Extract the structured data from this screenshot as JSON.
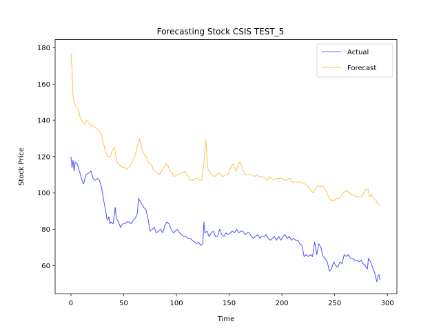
{
  "chart_data": {
    "type": "line",
    "title": "Forecasting Stock CSIS TEST_5",
    "xlabel": "Time",
    "ylabel": "Stock Price",
    "xlim": [
      -15,
      309
    ],
    "ylim": [
      44.5,
      184.5
    ],
    "xticks": [
      0,
      50,
      100,
      150,
      200,
      250,
      300
    ],
    "yticks": [
      60,
      80,
      100,
      120,
      140,
      160,
      180
    ],
    "grid": false,
    "legend_position": "top-right",
    "series": [
      {
        "name": "Actual",
        "color": "#0000ff",
        "points": [
          [
            0,
            120
          ],
          [
            1,
            114
          ],
          [
            2,
            118
          ],
          [
            3,
            112
          ],
          [
            4,
            117
          ],
          [
            6,
            116
          ],
          [
            8,
            112
          ],
          [
            9,
            110
          ],
          [
            11,
            106
          ],
          [
            12,
            105
          ],
          [
            14,
            110
          ],
          [
            17,
            111
          ],
          [
            19,
            112
          ],
          [
            21,
            108
          ],
          [
            23,
            107
          ],
          [
            25,
            108
          ],
          [
            27,
            107
          ],
          [
            29,
            103
          ],
          [
            31,
            96
          ],
          [
            33,
            90
          ],
          [
            34,
            86
          ],
          [
            35,
            85
          ],
          [
            36,
            87
          ],
          [
            37,
            83
          ],
          [
            38,
            84
          ],
          [
            40,
            83
          ],
          [
            42,
            92
          ],
          [
            43,
            86
          ],
          [
            45,
            84
          ],
          [
            47,
            81
          ],
          [
            49,
            83
          ],
          [
            51,
            83
          ],
          [
            53,
            84
          ],
          [
            55,
            84
          ],
          [
            57,
            83
          ],
          [
            59,
            85
          ],
          [
            61,
            86
          ],
          [
            63,
            89
          ],
          [
            64,
            97
          ],
          [
            65,
            96
          ],
          [
            67,
            94
          ],
          [
            69,
            92
          ],
          [
            71,
            91
          ],
          [
            73,
            86
          ],
          [
            75,
            79
          ],
          [
            77,
            80
          ],
          [
            79,
            81
          ],
          [
            81,
            78
          ],
          [
            83,
            79
          ],
          [
            85,
            80
          ],
          [
            87,
            78
          ],
          [
            89,
            82
          ],
          [
            91,
            84
          ],
          [
            93,
            83
          ],
          [
            95,
            80
          ],
          [
            97,
            78
          ],
          [
            99,
            79
          ],
          [
            101,
            80
          ],
          [
            103,
            78
          ],
          [
            105,
            77
          ],
          [
            107,
            76
          ],
          [
            109,
            76
          ],
          [
            111,
            75
          ],
          [
            113,
            75
          ],
          [
            115,
            74
          ],
          [
            117,
            73
          ],
          [
            119,
            72
          ],
          [
            121,
            73
          ],
          [
            123,
            71
          ],
          [
            125,
            72
          ],
          [
            126,
            84
          ],
          [
            127,
            78
          ],
          [
            129,
            79
          ],
          [
            131,
            76
          ],
          [
            133,
            78
          ],
          [
            135,
            79
          ],
          [
            137,
            76
          ],
          [
            139,
            76
          ],
          [
            141,
            80
          ],
          [
            143,
            77
          ],
          [
            145,
            76
          ],
          [
            147,
            78
          ],
          [
            149,
            77
          ],
          [
            151,
            78
          ],
          [
            153,
            79
          ],
          [
            155,
            78
          ],
          [
            157,
            80
          ],
          [
            159,
            78
          ],
          [
            161,
            79
          ],
          [
            163,
            79
          ],
          [
            165,
            77
          ],
          [
            167,
            78
          ],
          [
            169,
            78
          ],
          [
            171,
            76
          ],
          [
            173,
            75
          ],
          [
            175,
            76
          ],
          [
            177,
            77
          ],
          [
            179,
            75
          ],
          [
            181,
            76
          ],
          [
            183,
            76
          ],
          [
            185,
            77
          ],
          [
            187,
            75
          ],
          [
            189,
            74
          ],
          [
            191,
            75
          ],
          [
            193,
            76
          ],
          [
            195,
            74
          ],
          [
            197,
            76
          ],
          [
            199,
            74
          ],
          [
            201,
            76
          ],
          [
            203,
            77
          ],
          [
            205,
            75
          ],
          [
            207,
            76
          ],
          [
            209,
            74
          ],
          [
            211,
            75
          ],
          [
            213,
            74
          ],
          [
            215,
            74
          ],
          [
            217,
            72
          ],
          [
            219,
            71
          ],
          [
            221,
            65
          ],
          [
            223,
            66
          ],
          [
            225,
            65
          ],
          [
            227,
            66
          ],
          [
            229,
            65
          ],
          [
            231,
            73
          ],
          [
            232,
            70
          ],
          [
            233,
            66
          ],
          [
            235,
            72
          ],
          [
            237,
            70
          ],
          [
            239,
            65
          ],
          [
            241,
            64
          ],
          [
            243,
            62
          ],
          [
            245,
            57
          ],
          [
            247,
            58
          ],
          [
            249,
            62
          ],
          [
            251,
            60
          ],
          [
            253,
            59
          ],
          [
            255,
            62
          ],
          [
            257,
            61
          ],
          [
            259,
            66
          ],
          [
            261,
            65
          ],
          [
            263,
            66
          ],
          [
            265,
            64
          ],
          [
            267,
            64
          ],
          [
            269,
            63
          ],
          [
            271,
            63
          ],
          [
            273,
            62
          ],
          [
            275,
            63
          ],
          [
            277,
            61
          ],
          [
            279,
            60
          ],
          [
            281,
            58
          ],
          [
            282,
            64
          ],
          [
            284,
            62
          ],
          [
            286,
            59
          ],
          [
            288,
            56
          ],
          [
            290,
            51
          ],
          [
            291,
            54
          ],
          [
            292,
            55
          ],
          [
            293,
            52
          ]
        ]
      },
      {
        "name": "Forecast",
        "color": "#ffa500",
        "points": [
          [
            0,
            177
          ],
          [
            1,
            168
          ],
          [
            2,
            153
          ],
          [
            3,
            150
          ],
          [
            5,
            147
          ],
          [
            7,
            146
          ],
          [
            9,
            141
          ],
          [
            11,
            139
          ],
          [
            13,
            138
          ],
          [
            15,
            140
          ],
          [
            17,
            139
          ],
          [
            19,
            137
          ],
          [
            21,
            137
          ],
          [
            23,
            136
          ],
          [
            25,
            135
          ],
          [
            27,
            134
          ],
          [
            29,
            132
          ],
          [
            31,
            127
          ],
          [
            33,
            122
          ],
          [
            35,
            120
          ],
          [
            37,
            120
          ],
          [
            38,
            121
          ],
          [
            39,
            123
          ],
          [
            41,
            125
          ],
          [
            42,
            123
          ],
          [
            43,
            118
          ],
          [
            45,
            116
          ],
          [
            47,
            115
          ],
          [
            49,
            114
          ],
          [
            51,
            114
          ],
          [
            53,
            113
          ],
          [
            55,
            114
          ],
          [
            57,
            116
          ],
          [
            59,
            118
          ],
          [
            61,
            121
          ],
          [
            63,
            126
          ],
          [
            65,
            130
          ],
          [
            66,
            127
          ],
          [
            68,
            123
          ],
          [
            70,
            121
          ],
          [
            72,
            119
          ],
          [
            74,
            116
          ],
          [
            76,
            116
          ],
          [
            78,
            113
          ],
          [
            80,
            112
          ],
          [
            82,
            111
          ],
          [
            84,
            110
          ],
          [
            86,
            112
          ],
          [
            88,
            114
          ],
          [
            90,
            116
          ],
          [
            92,
            115
          ],
          [
            94,
            112
          ],
          [
            96,
            111
          ],
          [
            98,
            109
          ],
          [
            100,
            110
          ],
          [
            102,
            110
          ],
          [
            104,
            111
          ],
          [
            106,
            111
          ],
          [
            108,
            112
          ],
          [
            110,
            110
          ],
          [
            112,
            108
          ],
          [
            114,
            107
          ],
          [
            116,
            107
          ],
          [
            118,
            108
          ],
          [
            120,
            108
          ],
          [
            122,
            107
          ],
          [
            124,
            107
          ],
          [
            125,
            112
          ],
          [
            126,
            116
          ],
          [
            127,
            124
          ],
          [
            128,
            129
          ],
          [
            129,
            119
          ],
          [
            130,
            113
          ],
          [
            132,
            111
          ],
          [
            134,
            110
          ],
          [
            136,
            109
          ],
          [
            138,
            110
          ],
          [
            140,
            111
          ],
          [
            142,
            110
          ],
          [
            144,
            109
          ],
          [
            146,
            110
          ],
          [
            148,
            110
          ],
          [
            150,
            111
          ],
          [
            152,
            115
          ],
          [
            154,
            116
          ],
          [
            156,
            112
          ],
          [
            158,
            114
          ],
          [
            160,
            117
          ],
          [
            162,
            115
          ],
          [
            164,
            111
          ],
          [
            166,
            110
          ],
          [
            168,
            110
          ],
          [
            170,
            110
          ],
          [
            172,
            110
          ],
          [
            174,
            109
          ],
          [
            176,
            110
          ],
          [
            178,
            109
          ],
          [
            180,
            109
          ],
          [
            182,
            109
          ],
          [
            184,
            108
          ],
          [
            186,
            107
          ],
          [
            188,
            109
          ],
          [
            190,
            108
          ],
          [
            192,
            107
          ],
          [
            194,
            108
          ],
          [
            196,
            108
          ],
          [
            198,
            108
          ],
          [
            200,
            108
          ],
          [
            202,
            107
          ],
          [
            204,
            107
          ],
          [
            206,
            108
          ],
          [
            208,
            108
          ],
          [
            210,
            106
          ],
          [
            212,
            106
          ],
          [
            214,
            106
          ],
          [
            216,
            106
          ],
          [
            218,
            106
          ],
          [
            220,
            105
          ],
          [
            222,
            105
          ],
          [
            224,
            104
          ],
          [
            226,
            103
          ],
          [
            228,
            101
          ],
          [
            230,
            100
          ],
          [
            232,
            103
          ],
          [
            234,
            104
          ],
          [
            236,
            103
          ],
          [
            238,
            104
          ],
          [
            240,
            103
          ],
          [
            242,
            101
          ],
          [
            244,
            98
          ],
          [
            246,
            96
          ],
          [
            248,
            96
          ],
          [
            250,
            96
          ],
          [
            252,
            97
          ],
          [
            254,
            97
          ],
          [
            256,
            98
          ],
          [
            258,
            100
          ],
          [
            260,
            101
          ],
          [
            262,
            101
          ],
          [
            264,
            100
          ],
          [
            266,
            99
          ],
          [
            268,
            99
          ],
          [
            270,
            98
          ],
          [
            272,
            98
          ],
          [
            274,
            98
          ],
          [
            276,
            98
          ],
          [
            278,
            101
          ],
          [
            280,
            102
          ],
          [
            282,
            102
          ],
          [
            283,
            98
          ],
          [
            285,
            99
          ],
          [
            287,
            97
          ],
          [
            289,
            96
          ],
          [
            291,
            94
          ],
          [
            293,
            93
          ]
        ]
      }
    ]
  }
}
